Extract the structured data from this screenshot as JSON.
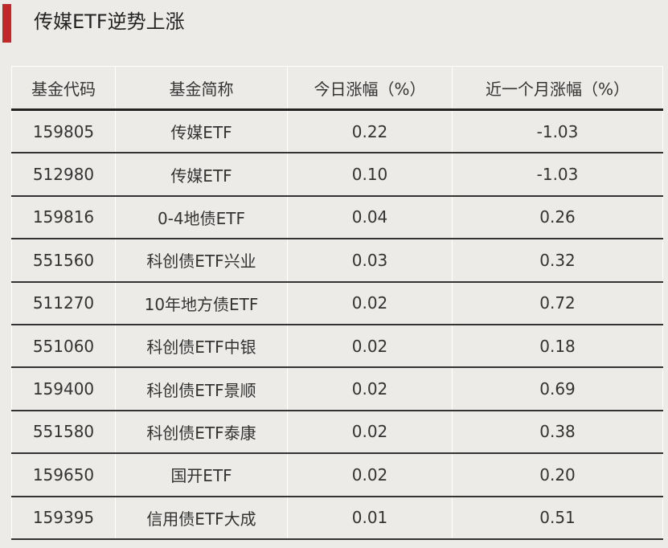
{
  "title": "传媒ETF逆势上涨",
  "accent_color": "#c0282a",
  "table": {
    "headers": [
      "基金代码",
      "基金简称",
      "今日涨幅（%）",
      "近一个月涨幅（%）"
    ],
    "rows": [
      [
        "159805",
        "传媒ETF",
        "0.22",
        "-1.03"
      ],
      [
        "512980",
        "传媒ETF",
        "0.10",
        "-1.03"
      ],
      [
        "159816",
        "0-4地债ETF",
        "0.04",
        "0.26"
      ],
      [
        "551560",
        "科创债ETF兴业",
        "0.03",
        "0.32"
      ],
      [
        "511270",
        "10年地方债ETF",
        "0.02",
        "0.72"
      ],
      [
        "551060",
        "科创债ETF中银",
        "0.02",
        "0.18"
      ],
      [
        "159400",
        "科创债ETF景顺",
        "0.02",
        "0.69"
      ],
      [
        "551580",
        "科创债ETF泰康",
        "0.02",
        "0.38"
      ],
      [
        "159650",
        "国开ETF",
        "0.02",
        "0.20"
      ],
      [
        "159395",
        "信用债ETF大成",
        "0.01",
        "0.51"
      ]
    ]
  }
}
